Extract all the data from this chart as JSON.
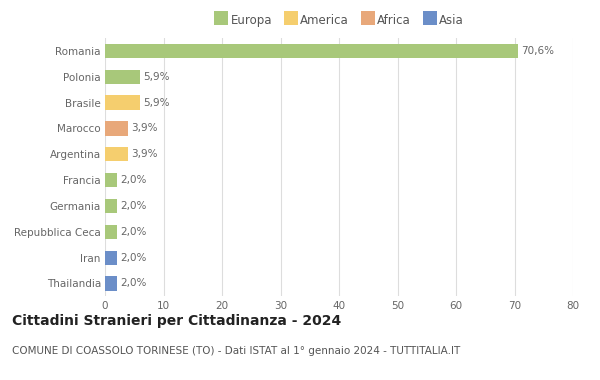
{
  "categories": [
    "Thailandia",
    "Iran",
    "Repubblica Ceca",
    "Germania",
    "Francia",
    "Argentina",
    "Marocco",
    "Brasile",
    "Polonia",
    "Romania"
  ],
  "values": [
    2.0,
    2.0,
    2.0,
    2.0,
    2.0,
    3.9,
    3.9,
    5.9,
    5.9,
    70.6
  ],
  "colors": [
    "#6b8ec8",
    "#6b8ec8",
    "#a8c87a",
    "#a8c87a",
    "#a8c87a",
    "#f5ce6e",
    "#e8a87a",
    "#f5ce6e",
    "#a8c87a",
    "#a8c87a"
  ],
  "labels": [
    "2,0%",
    "2,0%",
    "2,0%",
    "2,0%",
    "2,0%",
    "3,9%",
    "3,9%",
    "5,9%",
    "5,9%",
    "70,6%"
  ],
  "legend": [
    {
      "label": "Europa",
      "color": "#a8c87a"
    },
    {
      "label": "America",
      "color": "#f5ce6e"
    },
    {
      "label": "Africa",
      "color": "#e8a87a"
    },
    {
      "label": "Asia",
      "color": "#6b8ec8"
    }
  ],
  "title": "Cittadini Stranieri per Cittadinanza - 2024",
  "subtitle": "COMUNE DI COASSOLO TORINESE (TO) - Dati ISTAT al 1° gennaio 2024 - TUTTITALIA.IT",
  "xlim": [
    0,
    80
  ],
  "xticks": [
    0,
    10,
    20,
    30,
    40,
    50,
    60,
    70,
    80
  ],
  "background_color": "#ffffff",
  "grid_color": "#dddddd",
  "bar_height": 0.55,
  "title_fontsize": 10,
  "subtitle_fontsize": 7.5,
  "label_fontsize": 7.5,
  "tick_fontsize": 7.5,
  "legend_fontsize": 8.5
}
